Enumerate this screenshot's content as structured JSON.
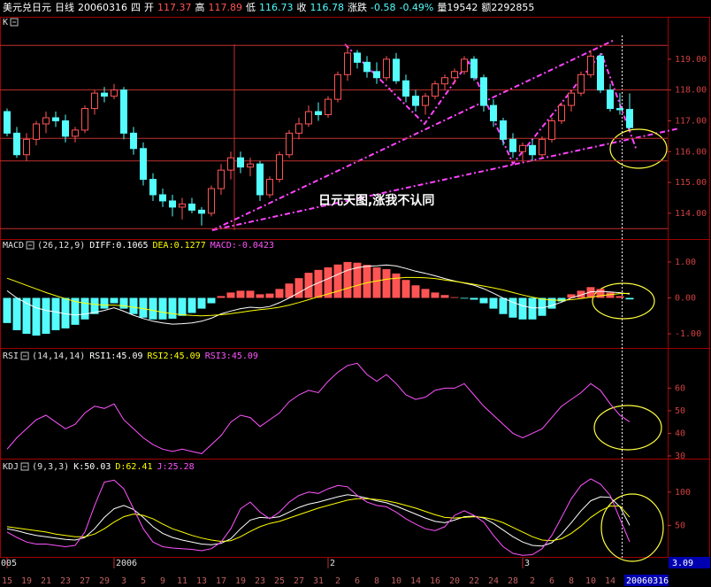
{
  "header": {
    "segments": [
      {
        "text": "美元兑日元",
        "color": "#ffffff"
      },
      {
        "text": "日线",
        "color": "#ffffff"
      },
      {
        "text": "20060316",
        "color": "#ffffff"
      },
      {
        "text": "四",
        "color": "#ffffff"
      },
      {
        "text": "开",
        "color": "#ffffff"
      },
      {
        "text": "117.37",
        "color": "#ff5454"
      },
      {
        "text": "高",
        "color": "#ffffff"
      },
      {
        "text": "117.89",
        "color": "#ff5454"
      },
      {
        "text": "低",
        "color": "#ffffff"
      },
      {
        "text": "116.73",
        "color": "#54fcfc"
      },
      {
        "text": "收",
        "color": "#ffffff"
      },
      {
        "text": "116.78",
        "color": "#54fcfc"
      },
      {
        "text": "涨跌",
        "color": "#ffffff"
      },
      {
        "text": "-0.58",
        "color": "#54fcfc"
      },
      {
        "text": "-0.49%",
        "color": "#54fcfc"
      },
      {
        "text": "量19542",
        "color": "#ffffff"
      },
      {
        "text": "额2292855",
        "color": "#ffffff"
      }
    ]
  },
  "chart_data": [
    {
      "type": "candlestick",
      "title": "K",
      "categories": [
        "15",
        null,
        "19",
        null,
        "21",
        null,
        "23",
        null,
        "27",
        null,
        "29",
        null,
        "3",
        null,
        "5",
        null,
        "9",
        null,
        "11",
        null,
        "13",
        null,
        "17",
        null,
        "19",
        null,
        "23",
        null,
        "25",
        null,
        "27",
        null,
        "31",
        null,
        "2",
        null,
        "6",
        null,
        "8",
        null,
        "10",
        null,
        "14",
        null,
        "16",
        null,
        "20",
        null,
        "22",
        null,
        "24",
        null,
        "28",
        null,
        "2",
        null,
        "6",
        null,
        "8",
        null,
        "10",
        null,
        "14",
        null,
        "20060316"
      ],
      "open": [
        117.3,
        116.6,
        115.9,
        116.4,
        116.9,
        117.1,
        117.0,
        116.5,
        116.7,
        117.4,
        117.9,
        117.8,
        118.0,
        116.6,
        116.1,
        115.1,
        114.6,
        114.4,
        114.2,
        114.3,
        114.1,
        114.0,
        114.8,
        115.4,
        115.8,
        115.5,
        115.6,
        114.6,
        115.1,
        115.9,
        116.6,
        116.9,
        117.3,
        117.2,
        117.7,
        118.5,
        119.2,
        118.9,
        118.6,
        118.4,
        119.0,
        118.3,
        117.8,
        117.5,
        117.8,
        118.2,
        118.4,
        118.6,
        119.0,
        118.4,
        117.5,
        117.0,
        116.4,
        116.0,
        116.2,
        115.9,
        116.4,
        117.0,
        117.5,
        117.9,
        118.5,
        119.1,
        118.0,
        117.4,
        117.37
      ],
      "high": [
        117.4,
        116.8,
        116.6,
        117.0,
        117.3,
        117.3,
        117.2,
        116.8,
        117.5,
        118.0,
        118.1,
        118.2,
        118.1,
        116.8,
        116.3,
        115.3,
        114.8,
        114.6,
        114.5,
        114.5,
        114.2,
        114.9,
        115.6,
        116.0,
        116.0,
        115.8,
        115.7,
        115.2,
        116.0,
        116.7,
        117.1,
        117.5,
        117.6,
        117.8,
        118.6,
        119.4,
        119.3,
        119.1,
        118.9,
        119.1,
        119.2,
        118.5,
        118.0,
        117.9,
        118.3,
        118.5,
        118.7,
        119.1,
        119.1,
        118.5,
        117.7,
        117.1,
        116.6,
        116.3,
        116.4,
        116.5,
        117.1,
        117.6,
        118.0,
        118.6,
        119.3,
        119.2,
        118.2,
        117.9,
        117.89
      ],
      "low": [
        116.5,
        115.8,
        115.7,
        116.2,
        116.6,
        116.8,
        116.3,
        116.3,
        116.6,
        117.2,
        117.6,
        117.7,
        116.4,
        115.9,
        114.9,
        114.4,
        114.2,
        113.9,
        113.8,
        114.0,
        113.6,
        113.9,
        114.6,
        115.1,
        115.3,
        115.2,
        114.4,
        114.5,
        115.0,
        115.8,
        116.4,
        116.8,
        117.0,
        117.1,
        117.6,
        118.3,
        118.7,
        118.4,
        118.2,
        118.3,
        118.2,
        117.6,
        117.3,
        117.2,
        117.7,
        118.0,
        118.2,
        118.5,
        118.3,
        117.3,
        116.8,
        116.2,
        115.8,
        115.7,
        115.7,
        115.8,
        116.3,
        116.9,
        117.3,
        117.8,
        118.4,
        117.9,
        117.3,
        117.2,
        116.73
      ],
      "close": [
        116.6,
        115.9,
        116.4,
        116.9,
        117.1,
        117.0,
        116.5,
        116.7,
        117.4,
        117.9,
        117.8,
        118.0,
        116.6,
        116.1,
        115.1,
        114.6,
        114.4,
        114.2,
        114.3,
        114.1,
        114.0,
        114.8,
        115.4,
        115.8,
        115.5,
        115.6,
        114.6,
        115.1,
        115.9,
        116.6,
        116.9,
        117.3,
        117.2,
        117.7,
        118.5,
        119.2,
        118.9,
        118.6,
        118.4,
        119.0,
        118.3,
        117.8,
        117.5,
        117.8,
        118.2,
        118.4,
        118.6,
        119.0,
        118.4,
        117.5,
        117.0,
        116.4,
        116.0,
        116.2,
        115.9,
        116.4,
        117.0,
        117.5,
        117.9,
        118.5,
        119.1,
        118.0,
        117.4,
        117.36,
        116.78
      ],
      "up_color": "#ff5454",
      "down_color": "#54fcfc",
      "ylim": [
        113.22,
        120.29
      ],
      "yticks": [
        {
          "value": 114,
          "label": "114.00"
        },
        {
          "value": 115,
          "label": "115.00"
        },
        {
          "value": 116,
          "label": "116.00"
        },
        {
          "value": 117,
          "label": "117.00"
        },
        {
          "value": 118,
          "label": "118.00"
        },
        {
          "value": 119,
          "label": "119.00"
        }
      ],
      "level_lines": [
        119.45,
        118.0,
        116.43,
        115.7,
        113.5
      ],
      "annotation": "日元天图,涨我不认同"
    },
    {
      "type": "macd",
      "title": "MACD",
      "params": "(26,12,9)",
      "legend": [
        {
          "label": "DIFF:0.1065",
          "color": "#ffffff"
        },
        {
          "label": "DEA:0.1277",
          "color": "#ffff00"
        },
        {
          "label": "MACD:-0.0423",
          "color": "#ff54ff"
        }
      ],
      "histogram": [
        -0.7,
        -0.9,
        -1.0,
        -1.05,
        -1.0,
        -0.9,
        -0.85,
        -0.75,
        -0.6,
        -0.45,
        -0.3,
        -0.15,
        -0.3,
        -0.45,
        -0.55,
        -0.6,
        -0.6,
        -0.58,
        -0.5,
        -0.42,
        -0.3,
        -0.15,
        0.05,
        0.15,
        0.2,
        0.2,
        0.1,
        0.12,
        0.25,
        0.4,
        0.55,
        0.7,
        0.78,
        0.85,
        0.93,
        1.0,
        0.98,
        0.92,
        0.85,
        0.8,
        0.68,
        0.5,
        0.35,
        0.25,
        0.15,
        0.08,
        0.02,
        -0.02,
        -0.05,
        -0.15,
        -0.3,
        -0.45,
        -0.55,
        -0.6,
        -0.6,
        -0.5,
        -0.3,
        -0.1,
        0.1,
        0.2,
        0.3,
        0.25,
        0.15,
        0.05,
        -0.0423
      ],
      "pos_color": "#ff5454",
      "neg_color": "#54fcfc",
      "series": [
        {
          "color": "#ffffff",
          "values": [
            0.2,
            0.0,
            -0.15,
            -0.275,
            -0.35,
            -0.39,
            -0.445,
            -0.475,
            -0.45,
            -0.405,
            -0.35,
            -0.275,
            -0.37,
            -0.485,
            -0.575,
            -0.65,
            -0.7,
            -0.73,
            -0.72,
            -0.7,
            -0.65,
            -0.565,
            -0.445,
            -0.365,
            -0.3,
            -0.26,
            -0.28,
            -0.24,
            -0.135,
            0.0,
            0.145,
            0.3,
            0.42,
            0.535,
            0.655,
            0.77,
            0.84,
            0.88,
            0.895,
            0.92,
            0.89,
            0.82,
            0.745,
            0.685,
            0.615,
            0.54,
            0.47,
            0.41,
            0.355,
            0.255,
            0.13,
            -0.005,
            -0.125,
            -0.22,
            -0.28,
            -0.28,
            -0.21,
            -0.12,
            0.0,
            0.08,
            0.17,
            0.185,
            0.165,
            0.145,
            0.1065
          ]
        },
        {
          "color": "#ffff00",
          "values": [
            0.55,
            0.45,
            0.35,
            0.25,
            0.15,
            0.06,
            -0.02,
            -0.1,
            -0.15,
            -0.18,
            -0.2,
            -0.2,
            -0.22,
            -0.26,
            -0.3,
            -0.35,
            -0.4,
            -0.44,
            -0.47,
            -0.49,
            -0.5,
            -0.49,
            -0.47,
            -0.44,
            -0.4,
            -0.36,
            -0.33,
            -0.3,
            -0.26,
            -0.2,
            -0.13,
            -0.05,
            0.03,
            0.11,
            0.19,
            0.27,
            0.35,
            0.42,
            0.47,
            0.52,
            0.55,
            0.57,
            0.57,
            0.56,
            0.54,
            0.5,
            0.46,
            0.42,
            0.38,
            0.33,
            0.28,
            0.22,
            0.15,
            0.08,
            0.02,
            -0.03,
            -0.06,
            -0.07,
            -0.05,
            -0.02,
            0.02,
            0.06,
            0.09,
            0.12,
            0.1277
          ]
        }
      ],
      "ylim": [
        -1.37,
        1.59
      ],
      "yticks": [
        {
          "value": -1,
          "label": "-1.00"
        },
        {
          "value": 0,
          "label": "0.00"
        },
        {
          "value": 1,
          "label": "1.00"
        }
      ]
    },
    {
      "type": "line",
      "title": "RSI",
      "params": "(14,14,14)",
      "legend": [
        {
          "label": "RSI1:45.09",
          "color": "#ffffff"
        },
        {
          "label": "RSI2:45.09",
          "color": "#ffff00"
        },
        {
          "label": "RSI3:45.09",
          "color": "#ff54ff"
        }
      ],
      "series": [
        {
          "color": "#ff54ff",
          "values": [
            33,
            38,
            42,
            46,
            48,
            45,
            42,
            44,
            49,
            52,
            51,
            53,
            46,
            42,
            38,
            35,
            33,
            32,
            33,
            32,
            31,
            35,
            39,
            45,
            48,
            47,
            43,
            46,
            49,
            54,
            57,
            59,
            58,
            63,
            67,
            70,
            71,
            66,
            63,
            66,
            62,
            57,
            55,
            56,
            59,
            60,
            60,
            62,
            57,
            52,
            48,
            44,
            40,
            38,
            40,
            42,
            47,
            52,
            55,
            58,
            62,
            59,
            53,
            48,
            45.09
          ]
        }
      ],
      "ylim": [
        29.2,
        76.2
      ],
      "yticks": [
        30,
        40,
        50,
        60
      ]
    },
    {
      "type": "line",
      "title": "KDJ",
      "params": "(9,3,3)",
      "legend": [
        {
          "label": "K:50.03",
          "color": "#ffffff"
        },
        {
          "label": "D:62.41",
          "color": "#ffff00"
        },
        {
          "label": "J:25.28",
          "color": "#ff54ff"
        }
      ],
      "series": [
        {
          "color": "#ffffff",
          "values": [
            45,
            42,
            38,
            35,
            33,
            31,
            29,
            28,
            32,
            45,
            62,
            75,
            80,
            74,
            62,
            48,
            38,
            32,
            28,
            25,
            22,
            21,
            23,
            30,
            45,
            58,
            62,
            61,
            63,
            70,
            77,
            82,
            85,
            89,
            93,
            96,
            94,
            91,
            87,
            84,
            79,
            73,
            67,
            61,
            56,
            54,
            58,
            63,
            64,
            61,
            53,
            43,
            33,
            25,
            20,
            19,
            24,
            37,
            54,
            72,
            87,
            93,
            92,
            78,
            50.03
          ]
        },
        {
          "color": "#ffff00",
          "values": [
            48,
            46,
            44,
            42,
            40,
            37,
            35,
            33,
            33,
            37,
            45,
            55,
            63,
            67,
            65,
            60,
            52,
            45,
            40,
            35,
            31,
            28,
            26,
            27,
            33,
            41,
            48,
            53,
            56,
            61,
            66,
            71,
            76,
            80,
            84,
            88,
            90,
            90,
            89,
            87,
            84,
            80,
            76,
            71,
            66,
            62,
            61,
            62,
            63,
            62,
            59,
            54,
            47,
            40,
            33,
            28,
            27,
            30,
            38,
            49,
            62,
            72,
            79,
            79,
            62.41
          ]
        },
        {
          "color": "#ff54ff",
          "values": [
            40,
            32,
            25,
            22,
            22,
            20,
            18,
            20,
            40,
            80,
            115,
            118,
            105,
            75,
            45,
            25,
            18,
            16,
            15,
            14,
            12,
            15,
            25,
            45,
            75,
            85,
            70,
            60,
            70,
            85,
            95,
            100,
            98,
            105,
            110,
            108,
            95,
            85,
            80,
            78,
            70,
            60,
            52,
            45,
            42,
            48,
            65,
            72,
            65,
            55,
            35,
            18,
            8,
            5,
            6,
            15,
            35,
            62,
            90,
            110,
            120,
            112,
            95,
            60,
            25.28
          ]
        }
      ],
      "ylim": [
        4,
        145
      ],
      "yticks": [
        50,
        100
      ]
    }
  ],
  "x_axis": {
    "period_labels": [
      {
        "label": "005",
        "index": 0
      },
      {
        "label": "2006",
        "index": 11
      },
      {
        "label": "2",
        "index": 33
      },
      {
        "label": "3",
        "index": 53
      }
    ],
    "cursor_value": "3.09"
  }
}
